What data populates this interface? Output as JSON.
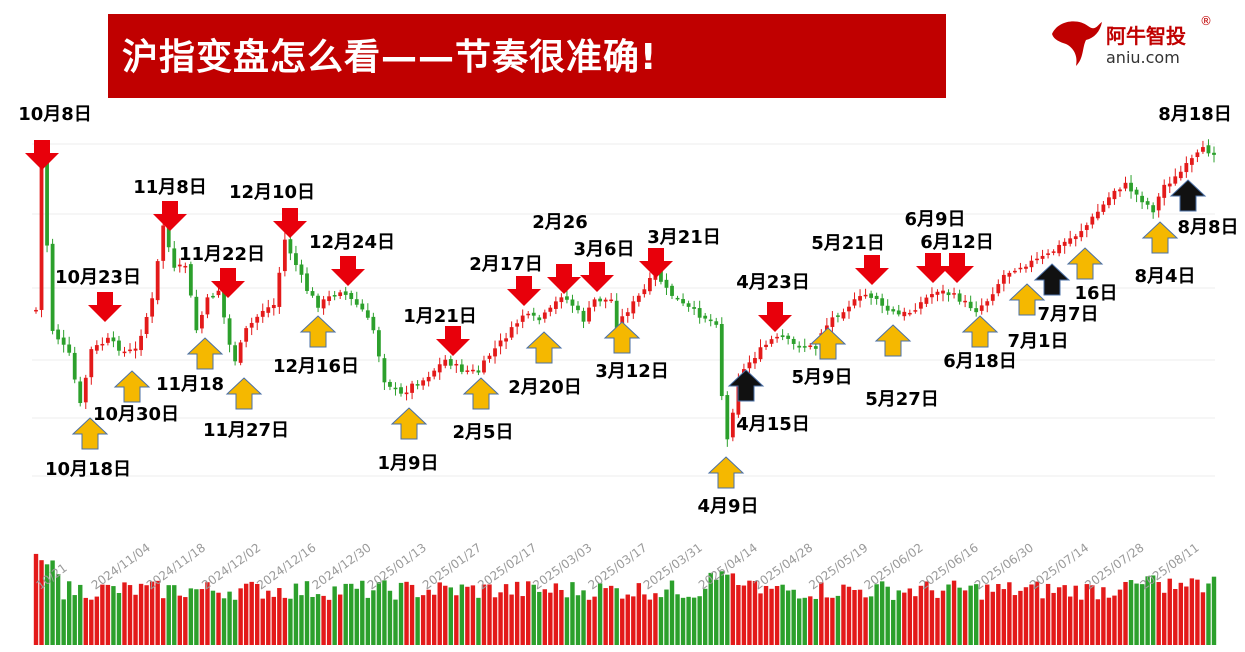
{
  "title": "沪指变盘怎么看——节奏很准确!",
  "logo": {
    "name": "阿牛智投",
    "reg": "®",
    "url": "aniu.com"
  },
  "colors": {
    "up": "#e31a1a",
    "down": "#2ca02c",
    "arrow_red": "#e8000b",
    "arrow_yellow": "#f5b800",
    "arrow_black": "#111111"
  },
  "chart_data": {
    "type": "candlestick",
    "x_ticks": [
      "10/21",
      "2024/11/04",
      "2024/11/18",
      "2024/12/02",
      "2024/12/16",
      "2024/12/30",
      "2025/01/13",
      "2025/01/27",
      "2025/02/17",
      "2025/03/03",
      "2025/03/17",
      "2025/03/31",
      "2025/04/14",
      "2025/04/28",
      "2025/05/19",
      "2025/06/02",
      "2025/06/16",
      "2025/06/30",
      "2025/07/14",
      "2025/07/28",
      "2025/08/11"
    ],
    "annotations": [
      {
        "text": "10月8日",
        "signal": "red-down",
        "day": 0
      },
      {
        "text": "10月18日",
        "signal": "yellow-up",
        "day": 8
      },
      {
        "text": "10月23日",
        "signal": "red-down",
        "day": 11
      },
      {
        "text": "10月30日",
        "signal": "yellow-up",
        "day": 16
      },
      {
        "text": "11月8日",
        "signal": "red-down",
        "day": 23
      },
      {
        "text": "11月18",
        "signal": "yellow-up",
        "day": 29
      },
      {
        "text": "11月22日",
        "signal": "red-down",
        "day": 33
      },
      {
        "text": "11月27日",
        "signal": "yellow-up",
        "day": 36
      },
      {
        "text": "12月10日",
        "signal": "red-down",
        "day": 45
      },
      {
        "text": "12月16日",
        "signal": "yellow-up",
        "day": 49
      },
      {
        "text": "12月24日",
        "signal": "red-down",
        "day": 55
      },
      {
        "text": "1月9日",
        "signal": "yellow-up",
        "day": 66
      },
      {
        "text": "1月21日",
        "signal": "red-down",
        "day": 74
      },
      {
        "text": "2月5日",
        "signal": "yellow-up",
        "day": 80
      },
      {
        "text": "2月17日",
        "signal": "red-down",
        "day": 88
      },
      {
        "text": "2月20日",
        "signal": "yellow-up",
        "day": 91
      },
      {
        "text": "2月26",
        "signal": "red-down",
        "day": 95
      },
      {
        "text": "3月6日",
        "signal": "red-down",
        "day": 101
      },
      {
        "text": "3月12日",
        "signal": "yellow-up",
        "day": 105
      },
      {
        "text": "3月21日",
        "signal": "red-down",
        "day": 112
      },
      {
        "text": "4月9日",
        "signal": "yellow-up",
        "day": 123
      },
      {
        "text": "4月15日",
        "signal": "black-up",
        "day": 127
      },
      {
        "text": "4月23日",
        "signal": "red-down",
        "day": 133
      },
      {
        "text": "5月9日",
        "signal": "yellow-up",
        "day": 142
      },
      {
        "text": "5月21日",
        "signal": "red-down",
        "day": 150
      },
      {
        "text": "5月27日",
        "signal": "yellow-up",
        "day": 153
      },
      {
        "text": "6月9日",
        "signal": "red-down",
        "day": 161
      },
      {
        "text": "6月12日",
        "signal": "red-down",
        "day": 164
      },
      {
        "text": "6月18日",
        "signal": "yellow-up",
        "day": 168
      },
      {
        "text": "7月1日",
        "signal": "yellow-up",
        "day": 177
      },
      {
        "text": "7月7日",
        "signal": "black-up",
        "day": 181
      },
      {
        "text": "16日",
        "signal": "yellow-up",
        "day": 188
      },
      {
        "text": "8月4日",
        "signal": "yellow-up",
        "day": 202
      },
      {
        "text": "8月8日",
        "signal": "black-up",
        "day": 206
      },
      {
        "text": "8月18日",
        "signal": "none",
        "day": 212
      }
    ]
  }
}
